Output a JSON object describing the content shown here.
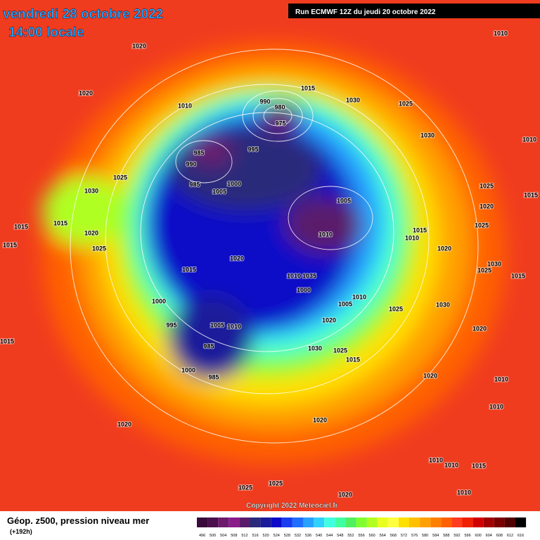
{
  "header": {
    "date": "vendredi 28 octobre 2022",
    "time": "14:00 locale",
    "run": "Run ECMWF 12Z du jeudi 20 octobre 2022"
  },
  "isobar_labels": [
    1020,
    1010,
    1020,
    1015,
    1010,
    990,
    980,
    975,
    1030,
    1025,
    1030,
    1010,
    985,
    995,
    990,
    1025,
    985,
    1000,
    1005,
    1030,
    1025,
    1015,
    1005,
    1020,
    1015,
    1015,
    1020,
    1010,
    1015,
    1010,
    1025,
    1020,
    1025,
    1020,
    1015,
    1010,
    1035,
    1000,
    1030,
    1025,
    1015,
    1010,
    1005,
    1000,
    1025,
    1030,
    995,
    1005,
    1010,
    1020,
    1020,
    1015,
    985,
    1030,
    1025,
    1015,
    1000,
    985,
    1020,
    1010,
    1010,
    1020,
    1020,
    1010,
    1010,
    1015,
    1025,
    1025,
    1020,
    1010,
    1015
  ],
  "copyright": "Copyright 2022 Meteociel.fr",
  "footer": {
    "title": "Géop. z500, pression niveau mer",
    "lead": "(+192h)"
  },
  "legend": {
    "values": [
      496,
      500,
      504,
      508,
      512,
      516,
      520,
      524,
      528,
      532,
      536,
      540,
      544,
      548,
      552,
      556,
      560,
      564,
      568,
      572,
      576,
      580,
      584,
      588,
      592,
      596,
      600,
      604,
      608,
      612,
      616
    ],
    "colors": [
      "#3a0a3a",
      "#4b0f4b",
      "#6d1a6d",
      "#8a1c8a",
      "#5a1a6a",
      "#2a2a7a",
      "#1a1a9a",
      "#0a0ac8",
      "#1a3cf0",
      "#1e6eff",
      "#28a0ff",
      "#30d0ff",
      "#40ffe0",
      "#40ffa0",
      "#50f060",
      "#80ff30",
      "#b0ff20",
      "#e8ff20",
      "#ffff40",
      "#ffe000",
      "#ffc000",
      "#ffa000",
      "#ff8000",
      "#ff6000",
      "#ff3c1e",
      "#f02000",
      "#d00000",
      "#a00000",
      "#780000",
      "#500000",
      "#000000"
    ]
  }
}
